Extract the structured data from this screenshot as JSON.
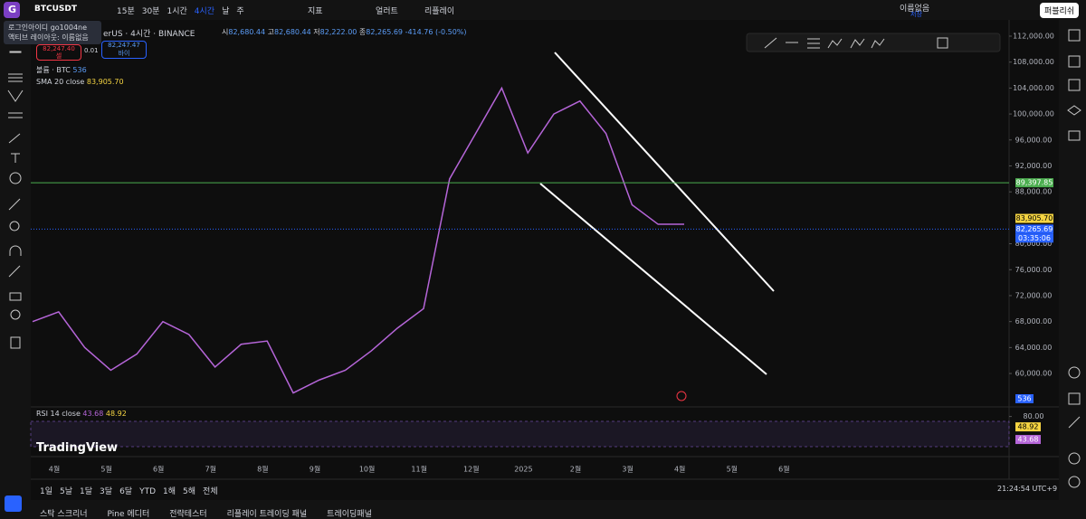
{
  "top_bar": {
    "avatar": "G",
    "symbol": "BTCUSDT",
    "intervals": [
      "15분",
      "30분",
      "1시간",
      "4시간",
      "날",
      "주"
    ],
    "indicators": "지표",
    "alerts": "얼러트",
    "replay": "리플레이",
    "layout_name": "이름없음",
    "save": "저장",
    "publish": "퍼블리쉬"
  },
  "tooltip": {
    "line1": "로그인아이디 go1004ne",
    "line2": "액티브 레이아웃: 이름없음"
  },
  "legend": {
    "symbol_desc": "erUS · 4시간 · BINANCE",
    "open_label": "시",
    "open": "82,680.44",
    "high_label": "고",
    "high": "82,680.44",
    "low_label": "저",
    "low": "82,222.00",
    "close_label": "종",
    "close": "82,265.69",
    "change": "-414.76 (-0.50%)"
  },
  "trade": {
    "sell_price": "82,247.40",
    "sell": "셀",
    "qty": "0.01",
    "buy_price": "82,247.47",
    "buy": "바이"
  },
  "volume": {
    "label": "볼륨 · BTC",
    "value": "536"
  },
  "sma": {
    "label": "SMA 20 close",
    "value": "83,905.70"
  },
  "chart": {
    "type": "line",
    "ylim": [
      55270,
      113670
    ],
    "yticks": [
      {
        "value": 112000,
        "label": "112,000.00"
      },
      {
        "value": 108000,
        "label": "108,000.00"
      },
      {
        "value": 104000,
        "label": "104,000.00"
      },
      {
        "value": 100000,
        "label": "100,000.00"
      },
      {
        "value": 96000,
        "label": "96,000.00"
      },
      {
        "value": 92000,
        "label": "92,000.00"
      },
      {
        "value": 88000,
        "label": "88,000.00"
      },
      {
        "value": 80000,
        "label": "80,000.00"
      },
      {
        "value": 76000,
        "label": "76,000.00"
      },
      {
        "value": 72000,
        "label": "72,000.00"
      },
      {
        "value": 68000,
        "label": "68,000.00"
      },
      {
        "value": 64000,
        "label": "64,000.00"
      },
      {
        "value": 60000,
        "label": "60,000.00"
      }
    ],
    "series": [
      {
        "color": "#b565d8",
        "values": [
          68000,
          69500,
          64000,
          60500,
          63000,
          68000,
          66000,
          61000,
          64500,
          65000,
          57000,
          59000,
          60500,
          63500,
          67000,
          70000,
          90000,
          97000,
          104000,
          94000,
          100000,
          102000,
          97000,
          86000,
          83000,
          83000
        ]
      }
    ],
    "sma_level": {
      "value": 83905.7,
      "label": "83,905.70",
      "color": "#f5d442"
    },
    "levels": [
      {
        "value": 89397.85,
        "label": "89,397.85",
        "color": "#4caf50"
      },
      {
        "value": 82265.69,
        "label": "82,265.69",
        "color": "#2962ff"
      }
    ],
    "countdown": "03:35:06",
    "volume_label": "536",
    "x_labels": [
      "4월",
      "5월",
      "6월",
      "7월",
      "8월",
      "9월",
      "10월",
      "11월",
      "12월",
      "2025",
      "2월",
      "3월",
      "4월",
      "5월",
      "6월"
    ]
  },
  "rsi": {
    "label": "RSI 14 close",
    "ylim": [
      10,
      90
    ],
    "yticks": [
      {
        "value": 80,
        "label": "80.00"
      }
    ],
    "value": 43.68,
    "ma_value": 48.92,
    "watermark": "TradingView"
  },
  "ranges": [
    "1일",
    "5날",
    "1달",
    "3달",
    "6달",
    "YTD",
    "1해",
    "5해",
    "전체"
  ],
  "clock": "21:24:54 UTC+9",
  "tabs": [
    "스탁 스크리너",
    "Pine 에디터",
    "전략테스터",
    "리플레이 트레이딩 패널",
    "트레이딩패널"
  ]
}
